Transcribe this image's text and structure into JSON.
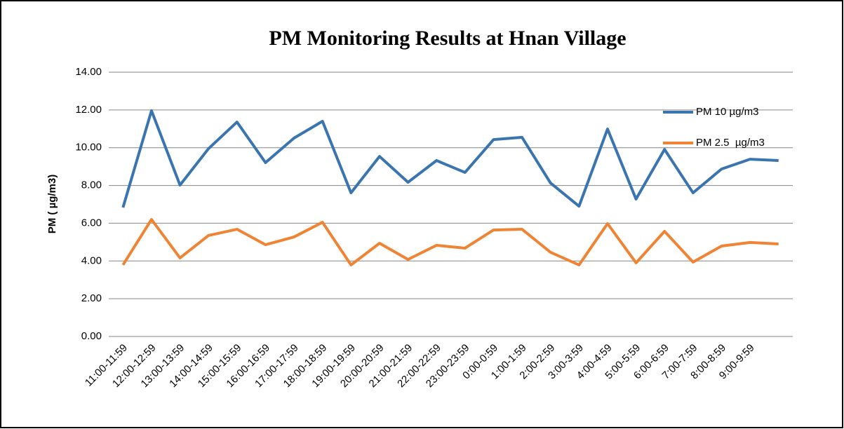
{
  "chart_data": {
    "type": "line",
    "title": "PM Monitoring Results at Hnan Village",
    "y_label": "PM ( µg/m3)",
    "categories": [
      "11:00-11:59",
      "12:00-12:59",
      "13:00-13:59",
      "14:00-14:59",
      "15:00-15:59",
      "16:00-16:59",
      "17:00-17:59",
      "18:00-18:59",
      "19:00-19:59",
      "20:00-20:59",
      "21:00-21:59",
      "22:00-22:59",
      "23:00-23:59",
      "0:00-0:59",
      "1:00-1:59",
      "2:00-2:59",
      "3:00-3:59",
      "4:00-4:59",
      "5:00-5:59",
      "6:00-6:59",
      "7:00-7:59",
      "8:00-8:59",
      "9:00-9:59",
      null
    ],
    "series": [
      {
        "name": "PM 10 µg/m3",
        "color": "#3a75b0",
        "values": [
          6.83,
          11.96,
          8.02,
          9.95,
          11.36,
          9.21,
          10.51,
          11.4,
          7.61,
          9.54,
          8.17,
          9.32,
          8.69,
          10.43,
          10.55,
          8.13,
          6.9,
          10.99,
          7.28,
          9.91,
          7.61,
          8.87,
          9.39,
          9.32
        ]
      },
      {
        "name": "PM 2.5  µg/m3",
        "color": "#ee8434",
        "values": [
          3.79,
          6.2,
          4.16,
          5.35,
          5.68,
          4.86,
          5.27,
          6.05,
          3.79,
          4.94,
          4.08,
          4.83,
          4.68,
          5.64,
          5.68,
          4.46,
          3.79,
          5.98,
          3.9,
          5.57,
          3.94,
          4.79,
          4.98,
          4.9
        ]
      }
    ],
    "ylim": [
      0,
      14
    ],
    "yticks": [
      {
        "value": 0,
        "label": "0.00"
      },
      {
        "value": 2,
        "label": "2.00"
      },
      {
        "value": 4,
        "label": "4.00"
      },
      {
        "value": 6,
        "label": "6.00"
      },
      {
        "value": 8,
        "label": "8.00"
      },
      {
        "value": 10,
        "label": "10.00"
      },
      {
        "value": 12,
        "label": "12.00"
      },
      {
        "value": 14,
        "label": "14.00"
      }
    ],
    "grid": true,
    "legend": "upper right"
  }
}
